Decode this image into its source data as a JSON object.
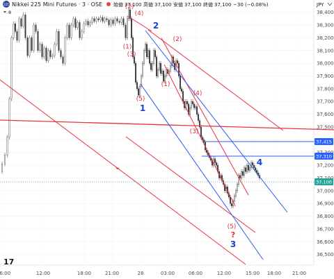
{
  "header": {
    "symbol_badge": "225",
    "title": "Nikkei 225 Mini Futures · 3 · OSE",
    "quote_prefix": "始値",
    "open": "37,100",
    "high_label": "高値",
    "high": "37,100",
    "low_label": "安値",
    "low": "37,100",
    "close_label": "終値",
    "close": "37,100",
    "change": "−30 (−0.08%)",
    "indicator_count": "8"
  },
  "chart_data": {
    "type": "candlestick",
    "currency": "JPY",
    "y_ticks": [
      "38,400",
      "38,300",
      "38,200",
      "38,100",
      "38,000",
      "37,900",
      "37,800",
      "37,700",
      "37,600",
      "37,500",
      "37,400",
      "37,300",
      "37,200",
      "37,100",
      "37,000",
      "36,900",
      "36,800",
      "36,700",
      "36,600",
      "36,500"
    ],
    "y_tick_values": [
      38400,
      38300,
      38200,
      38100,
      38000,
      37900,
      37800,
      37700,
      37600,
      37500,
      37400,
      37300,
      37200,
      37100,
      37000,
      36900,
      36800,
      36700,
      36600,
      36500
    ],
    "ylim": [
      36460,
      38420
    ],
    "x_ticks": [
      "06:00",
      "12:00",
      "18:00",
      "21:00",
      "28",
      "03:00",
      "06:00",
      "12:00",
      "15:00",
      "18:00",
      "21:00"
    ],
    "price_tags": [
      {
        "label": "37,415",
        "value": 37415,
        "color": "#2962ff"
      },
      {
        "label": "37,310",
        "value": 37310,
        "color": "#2962ff"
      },
      {
        "label": "37,100",
        "value": 37100,
        "color": "#26a69a"
      }
    ],
    "annotations": [
      {
        "text": "(2)",
        "color": "#e0303a"
      },
      {
        "text": "(4)",
        "color": "#e0303a"
      },
      {
        "text": "2",
        "color": "#1a3fd6"
      },
      {
        "text": "(2)",
        "color": "#e0303a"
      },
      {
        "text": "(1)",
        "color": "#e0303a"
      },
      {
        "text": "(3)",
        "color": "#e0303a"
      },
      {
        "text": "(5)",
        "color": "#e0303a"
      },
      {
        "text": "1",
        "color": "#1a3fd6"
      },
      {
        "text": "(1)",
        "color": "#e0303a"
      },
      {
        "text": "(4)",
        "color": "#e0303a"
      },
      {
        "text": "(3)",
        "color": "#e0303a"
      },
      {
        "text": "4",
        "color": "#1a3fd6"
      },
      {
        "text": "(5)",
        "color": "#e0303a"
      },
      {
        "text": "?",
        "color": "#e0303a"
      },
      {
        "text": "3",
        "color": "#1a3fd6"
      }
    ],
    "price_path": [
      [
        0,
        37150
      ],
      [
        4,
        37210
      ],
      [
        8,
        37280
      ],
      [
        11,
        37420
      ],
      [
        14,
        37720
      ],
      [
        17,
        38200
      ],
      [
        20,
        38310
      ],
      [
        22,
        38250
      ],
      [
        25,
        38180
      ],
      [
        28,
        38350
      ],
      [
        31,
        38290
      ],
      [
        34,
        38380
      ],
      [
        37,
        38200
      ],
      [
        40,
        38060
      ],
      [
        43,
        38200
      ],
      [
        46,
        38100
      ],
      [
        49,
        38300
      ],
      [
        52,
        38250
      ],
      [
        55,
        38100
      ],
      [
        58,
        38150
      ],
      [
        61,
        38050
      ],
      [
        64,
        38120
      ],
      [
        67,
        38020
      ],
      [
        70,
        38100
      ],
      [
        73,
        38050
      ],
      [
        76,
        38060
      ],
      [
        79,
        38150
      ],
      [
        82,
        38250
      ],
      [
        85,
        38100
      ],
      [
        88,
        38050
      ],
      [
        91,
        38000
      ],
      [
        94,
        38200
      ],
      [
        97,
        38300
      ],
      [
        100,
        38200
      ],
      [
        103,
        38300
      ],
      [
        106,
        38350
      ],
      [
        109,
        38280
      ],
      [
        112,
        38320
      ],
      [
        115,
        38200
      ],
      [
        118,
        38250
      ],
      [
        121,
        38310
      ],
      [
        124,
        38330
      ],
      [
        127,
        38300
      ],
      [
        130,
        38320
      ],
      [
        133,
        38350
      ],
      [
        136,
        38330
      ],
      [
        139,
        38350
      ],
      [
        142,
        38340
      ],
      [
        145,
        38360
      ],
      [
        148,
        38330
      ],
      [
        151,
        38350
      ],
      [
        154,
        38340
      ],
      [
        157,
        38300
      ],
      [
        160,
        38340
      ],
      [
        163,
        38310
      ],
      [
        166,
        38350
      ],
      [
        169,
        38330
      ],
      [
        172,
        38320
      ],
      [
        175,
        38350
      ],
      [
        178,
        38300
      ],
      [
        181,
        38200
      ],
      [
        183,
        38350
      ],
      [
        185,
        38420
      ],
      [
        187,
        38350
      ],
      [
        189,
        38200
      ],
      [
        191,
        38050
      ],
      [
        193,
        38000
      ],
      [
        195,
        37850
      ],
      [
        197,
        37800
      ],
      [
        199,
        37750
      ],
      [
        201,
        37820
      ],
      [
        203,
        37900
      ],
      [
        205,
        38000
      ],
      [
        207,
        38100
      ],
      [
        209,
        38150
      ],
      [
        211,
        38050
      ],
      [
        213,
        38100
      ],
      [
        215,
        38000
      ],
      [
        217,
        37950
      ],
      [
        219,
        38000
      ],
      [
        221,
        38100
      ],
      [
        223,
        38050
      ],
      [
        225,
        37900
      ],
      [
        227,
        37950
      ],
      [
        229,
        38000
      ],
      [
        231,
        37920
      ],
      [
        233,
        37940
      ],
      [
        235,
        37860
      ],
      [
        237,
        37900
      ],
      [
        239,
        37950
      ],
      [
        241,
        37920
      ],
      [
        243,
        37940
      ],
      [
        245,
        37980
      ],
      [
        247,
        38050
      ],
      [
        249,
        38000
      ],
      [
        251,
        37950
      ],
      [
        253,
        38020
      ],
      [
        255,
        38000
      ],
      [
        257,
        37900
      ],
      [
        259,
        37800
      ],
      [
        261,
        37780
      ],
      [
        263,
        37700
      ],
      [
        265,
        37650
      ],
      [
        267,
        37700
      ],
      [
        269,
        37680
      ],
      [
        271,
        37600
      ],
      [
        273,
        37650
      ],
      [
        275,
        37700
      ],
      [
        277,
        37680
      ],
      [
        279,
        37650
      ],
      [
        281,
        37660
      ],
      [
        283,
        37600
      ],
      [
        285,
        37550
      ],
      [
        287,
        37500
      ],
      [
        289,
        37420
      ],
      [
        291,
        37400
      ],
      [
        293,
        37380
      ],
      [
        295,
        37320
      ],
      [
        297,
        37300
      ],
      [
        299,
        37280
      ],
      [
        301,
        37260
      ],
      [
        303,
        37240
      ],
      [
        305,
        37200
      ],
      [
        307,
        37250
      ],
      [
        309,
        37220
      ],
      [
        311,
        37200
      ],
      [
        313,
        37150
      ],
      [
        315,
        37100
      ],
      [
        317,
        37120
      ],
      [
        319,
        37080
      ],
      [
        321,
        37050
      ],
      [
        323,
        37000
      ],
      [
        325,
        37030
      ],
      [
        327,
        36980
      ],
      [
        329,
        36950
      ],
      [
        331,
        36900
      ],
      [
        333,
        36880
      ],
      [
        335,
        36920
      ],
      [
        337,
        36960
      ],
      [
        339,
        37000
      ],
      [
        341,
        37050
      ],
      [
        343,
        37120
      ],
      [
        345,
        37100
      ],
      [
        347,
        37150
      ],
      [
        349,
        37120
      ],
      [
        351,
        37180
      ],
      [
        353,
        37150
      ],
      [
        355,
        37200
      ],
      [
        357,
        37160
      ],
      [
        359,
        37180
      ],
      [
        361,
        37220
      ],
      [
        363,
        37200
      ],
      [
        365,
        37180
      ],
      [
        367,
        37160
      ],
      [
        369,
        37140
      ],
      [
        371,
        37120
      ],
      [
        373,
        37100
      ]
    ],
    "title": "",
    "xlabel": "",
    "ylabel": ""
  },
  "logo_text": "17"
}
